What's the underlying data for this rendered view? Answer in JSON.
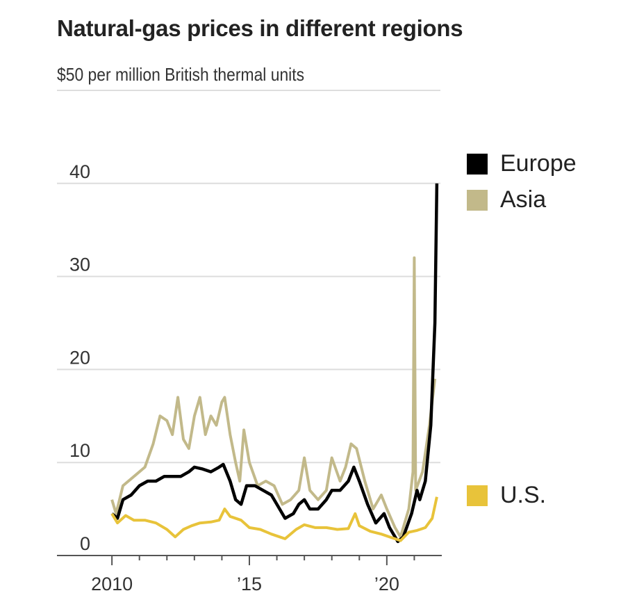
{
  "chart_data": {
    "type": "line",
    "title": "Natural-gas prices in different regions",
    "ylabel": "$50 per million British thermal units",
    "ylim": [
      0,
      50
    ],
    "xlim": [
      2008,
      2022
    ],
    "yticks": [
      {
        "value": 0,
        "label": "0"
      },
      {
        "value": 10,
        "label": "10"
      },
      {
        "value": 20,
        "label": "20"
      },
      {
        "value": 30,
        "label": "30"
      },
      {
        "value": 40,
        "label": "40"
      }
    ],
    "xticks": [
      {
        "value": 2010,
        "label": "2010"
      },
      {
        "value": 2015,
        "label": "’15"
      },
      {
        "value": 2020,
        "label": "’20"
      }
    ],
    "minor_xticks": [
      2011,
      2012,
      2013,
      2014,
      2016,
      2017,
      2018,
      2019,
      2021
    ],
    "grid": true,
    "series": [
      {
        "name": "Asia",
        "color": "#c2b98a",
        "legend_pos": "right",
        "points": [
          [
            2010.0,
            6
          ],
          [
            2010.15,
            4.5
          ],
          [
            2010.4,
            7.5
          ],
          [
            2010.8,
            8.5
          ],
          [
            2011.2,
            9.5
          ],
          [
            2011.5,
            12
          ],
          [
            2011.75,
            15
          ],
          [
            2012.0,
            14.5
          ],
          [
            2012.2,
            13
          ],
          [
            2012.4,
            17
          ],
          [
            2012.6,
            12.5
          ],
          [
            2012.8,
            11.5
          ],
          [
            2013.0,
            15
          ],
          [
            2013.2,
            17
          ],
          [
            2013.4,
            13
          ],
          [
            2013.6,
            15
          ],
          [
            2013.8,
            14
          ],
          [
            2014.0,
            16.5
          ],
          [
            2014.1,
            17
          ],
          [
            2014.3,
            13
          ],
          [
            2014.5,
            10
          ],
          [
            2014.65,
            8
          ],
          [
            2014.8,
            13.5
          ],
          [
            2015.0,
            10
          ],
          [
            2015.3,
            7.5
          ],
          [
            2015.6,
            8
          ],
          [
            2015.9,
            7.5
          ],
          [
            2016.2,
            5.5
          ],
          [
            2016.5,
            6
          ],
          [
            2016.8,
            7
          ],
          [
            2017.0,
            10.5
          ],
          [
            2017.2,
            7
          ],
          [
            2017.5,
            6
          ],
          [
            2017.8,
            7
          ],
          [
            2018.0,
            10.5
          ],
          [
            2018.3,
            8
          ],
          [
            2018.5,
            9.5
          ],
          [
            2018.7,
            12
          ],
          [
            2018.9,
            11.5
          ],
          [
            2019.2,
            8
          ],
          [
            2019.5,
            5
          ],
          [
            2019.8,
            6.5
          ],
          [
            2020.0,
            5
          ],
          [
            2020.3,
            3
          ],
          [
            2020.5,
            2
          ],
          [
            2020.8,
            5
          ],
          [
            2020.95,
            9
          ],
          [
            2021.0,
            32
          ],
          [
            2021.05,
            7
          ],
          [
            2021.3,
            9
          ],
          [
            2021.55,
            14
          ],
          [
            2021.75,
            19
          ]
        ]
      },
      {
        "name": "Europe",
        "color": "#000000",
        "legend_pos": "right",
        "points": [
          [
            2010.0,
            4.5
          ],
          [
            2010.2,
            4
          ],
          [
            2010.4,
            6
          ],
          [
            2010.7,
            6.5
          ],
          [
            2011.0,
            7.5
          ],
          [
            2011.3,
            8
          ],
          [
            2011.6,
            8
          ],
          [
            2011.9,
            8.5
          ],
          [
            2012.2,
            8.5
          ],
          [
            2012.5,
            8.5
          ],
          [
            2012.8,
            9
          ],
          [
            2013.0,
            9.5
          ],
          [
            2013.3,
            9.3
          ],
          [
            2013.6,
            9
          ],
          [
            2013.9,
            9.5
          ],
          [
            2014.05,
            9.8
          ],
          [
            2014.3,
            8
          ],
          [
            2014.5,
            6
          ],
          [
            2014.7,
            5.5
          ],
          [
            2014.9,
            7.5
          ],
          [
            2015.2,
            7.5
          ],
          [
            2015.5,
            7
          ],
          [
            2015.8,
            6.5
          ],
          [
            2016.0,
            5.5
          ],
          [
            2016.3,
            4
          ],
          [
            2016.6,
            4.5
          ],
          [
            2016.8,
            5.5
          ],
          [
            2017.0,
            6
          ],
          [
            2017.2,
            5
          ],
          [
            2017.5,
            5
          ],
          [
            2017.8,
            6
          ],
          [
            2018.0,
            7
          ],
          [
            2018.3,
            7
          ],
          [
            2018.6,
            8
          ],
          [
            2018.8,
            9.5
          ],
          [
            2019.0,
            8
          ],
          [
            2019.3,
            5.5
          ],
          [
            2019.6,
            3.5
          ],
          [
            2019.9,
            4.5
          ],
          [
            2020.1,
            3
          ],
          [
            2020.4,
            1.5
          ],
          [
            2020.6,
            2
          ],
          [
            2020.9,
            4.5
          ],
          [
            2021.1,
            7
          ],
          [
            2021.2,
            6
          ],
          [
            2021.4,
            8
          ],
          [
            2021.6,
            14
          ],
          [
            2021.75,
            25
          ],
          [
            2021.82,
            40
          ]
        ]
      },
      {
        "name": "U.S.",
        "color": "#e8c33a",
        "legend_pos": "right",
        "points": [
          [
            2010.0,
            4.5
          ],
          [
            2010.2,
            3.5
          ],
          [
            2010.5,
            4.3
          ],
          [
            2010.8,
            3.8
          ],
          [
            2011.2,
            3.8
          ],
          [
            2011.6,
            3.5
          ],
          [
            2012.0,
            2.8
          ],
          [
            2012.3,
            2
          ],
          [
            2012.6,
            2.8
          ],
          [
            2012.9,
            3.2
          ],
          [
            2013.2,
            3.5
          ],
          [
            2013.6,
            3.6
          ],
          [
            2013.9,
            3.8
          ],
          [
            2014.1,
            5
          ],
          [
            2014.3,
            4.2
          ],
          [
            2014.7,
            3.8
          ],
          [
            2015.0,
            3
          ],
          [
            2015.4,
            2.8
          ],
          [
            2015.8,
            2.3
          ],
          [
            2016.1,
            2
          ],
          [
            2016.3,
            1.8
          ],
          [
            2016.7,
            2.8
          ],
          [
            2017.0,
            3.3
          ],
          [
            2017.4,
            3
          ],
          [
            2017.8,
            3
          ],
          [
            2018.2,
            2.8
          ],
          [
            2018.6,
            2.9
          ],
          [
            2018.85,
            4.5
          ],
          [
            2019.0,
            3.2
          ],
          [
            2019.4,
            2.6
          ],
          [
            2019.8,
            2.3
          ],
          [
            2020.2,
            1.9
          ],
          [
            2020.5,
            1.6
          ],
          [
            2020.8,
            2.5
          ],
          [
            2021.1,
            2.7
          ],
          [
            2021.4,
            3
          ],
          [
            2021.65,
            4
          ],
          [
            2021.82,
            6.3
          ]
        ]
      }
    ]
  }
}
